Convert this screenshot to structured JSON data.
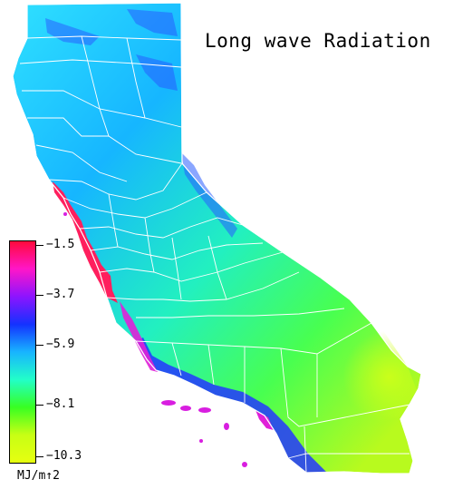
{
  "title": "Long wave Radiation",
  "legend": {
    "ticks": [
      {
        "label": "−1.5",
        "value": -1.5
      },
      {
        "label": "−3.7",
        "value": -3.7
      },
      {
        "label": "−5.9",
        "value": -5.9
      },
      {
        "label": "−8.1",
        "value": -8.1
      },
      {
        "label": "−10.3",
        "value": -10.3
      }
    ],
    "unit": "MJ/m↑2",
    "gradient_colors": [
      "#ff0a3c",
      "#ff16c8",
      "#8c14ff",
      "#1432ff",
      "#18b4ff",
      "#22ffc8",
      "#38ff22",
      "#c8ff14",
      "#e6ff10"
    ]
  },
  "map": {
    "region": "California",
    "colors": {
      "outline": "#ffffff",
      "coast_low": "#ff1f6a",
      "coast_mid": "#2a3cff",
      "north_cool": "#24d6ff",
      "valley": "#16a8ff",
      "interior": "#2cf0b0",
      "desert": "#bdfa1a"
    }
  }
}
